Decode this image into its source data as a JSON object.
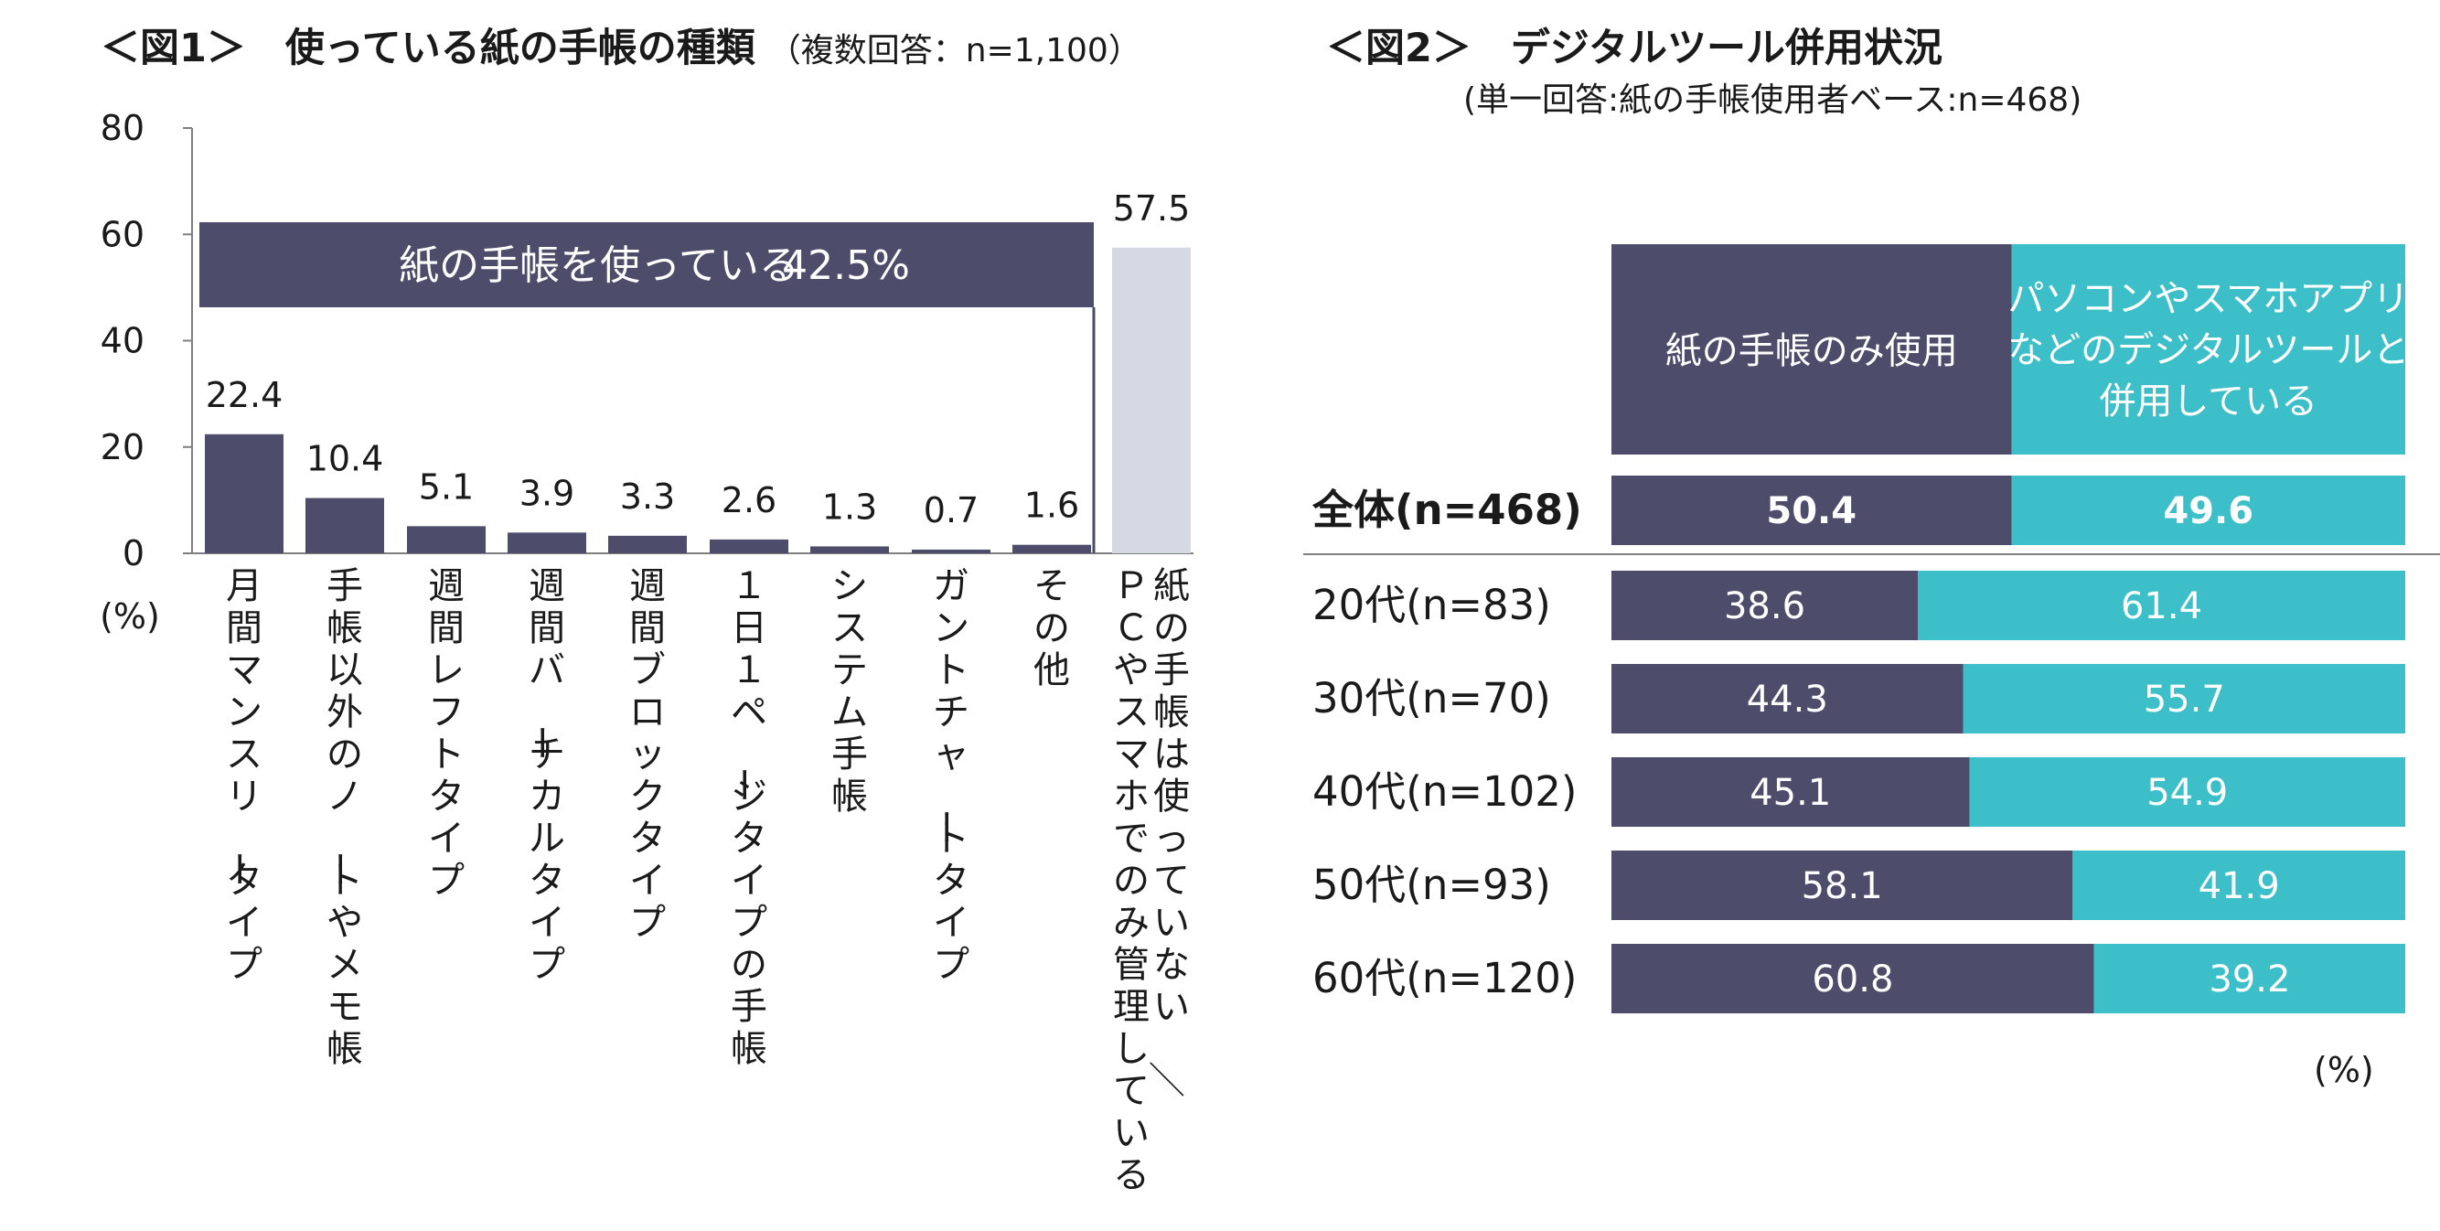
{
  "colors": {
    "dark": "#4d4d6b",
    "light": "#d5d9e3",
    "teal": "#3cbfc8",
    "axis": "#7f7f7f",
    "text": "#1a1a1a"
  },
  "figure1": {
    "title": "＜図1＞　使っている紙の手帳の種類",
    "title_note": "（複数回答：n=1,100）",
    "unit_label": "(%)",
    "banner_text": "紙の手帳を使っている",
    "banner_value": "42.5%"
  },
  "figure2": {
    "title": "＜図2＞　デジタルツール併用状況",
    "subtitle": "(単一回答:紙の手帳使用者ベース:n=468)",
    "unit_label": "(%)"
  },
  "chart_data": [
    {
      "type": "bar",
      "title": "使っている紙の手帳の種類",
      "ylabel": "(%)",
      "ylim": [
        0,
        80
      ],
      "yticks": [
        0,
        20,
        40,
        60,
        80
      ],
      "categories": [
        "月間マンスリータイプ",
        "手帳以外のノートやメモ帳",
        "週間レフトタイプ",
        "週間バーチカルタイプ",
        "週間ブロックタイプ",
        "１日１ページタイプの手帳",
        "システム手帳",
        "ガントチャートタイプ",
        "その他",
        "紙の手帳は使っていない／ＰＣやスマホでのみ管理している"
      ],
      "values": [
        22.4,
        10.4,
        5.1,
        3.9,
        3.3,
        2.6,
        1.3,
        0.7,
        1.6,
        57.5
      ],
      "value_labels": [
        "22.4",
        "10.4",
        "5.1",
        "3.9",
        "3.3",
        "2.6",
        "1.3",
        "0.7",
        "1.6",
        "57.5"
      ]
    },
    {
      "type": "bar",
      "orientation": "horizontal-stacked",
      "title": "デジタルツール併用状況",
      "xlim": [
        0,
        100
      ],
      "series": [
        {
          "name": "紙の手帳のみ使用",
          "values": [
            50.4,
            38.6,
            44.3,
            45.1,
            58.1,
            60.8
          ],
          "labels": [
            "50.4",
            "38.6",
            "44.3",
            "45.1",
            "58.1",
            "60.8"
          ]
        },
        {
          "name": "パソコンやスマホアプリなどのデジタルツールと併用している",
          "name_lines": [
            "パソコンやスマホアプリ",
            "などのデジタルツールと",
            "併用している"
          ],
          "values": [
            49.6,
            61.4,
            55.7,
            54.9,
            41.9,
            39.2
          ],
          "labels": [
            "49.6",
            "61.4",
            "55.7",
            "54.9",
            "41.9",
            "39.2"
          ]
        }
      ],
      "categories": [
        "全体(n=468)",
        "20代(n=83)",
        "30代(n=70)",
        "40代(n=102)",
        "50代(n=93)",
        "60代(n=120)"
      ],
      "emphasized_category": "全体(n=468)"
    }
  ]
}
